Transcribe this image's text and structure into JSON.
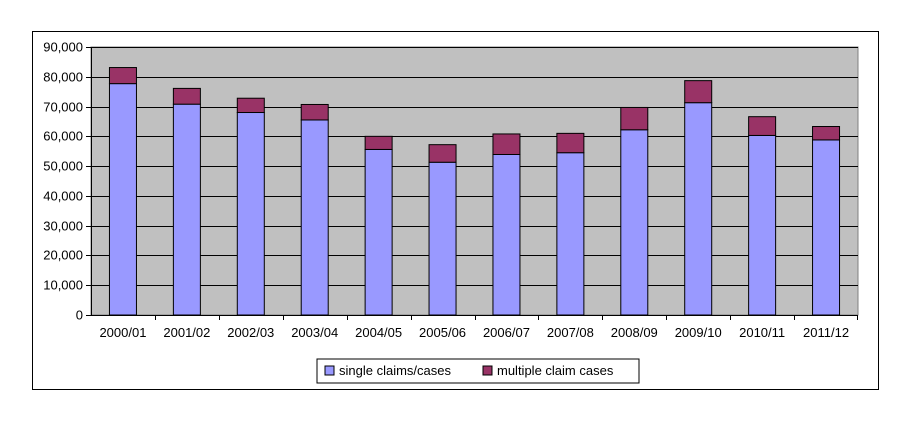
{
  "chart_data": {
    "type": "bar",
    "stacked": true,
    "categories": [
      "2000/01",
      "2001/02",
      "2002/03",
      "2003/04",
      "2004/05",
      "2005/06",
      "2006/07",
      "2007/08",
      "2008/09",
      "2009/10",
      "2010/11",
      "2011/12"
    ],
    "series": [
      {
        "name": "single claims/cases",
        "color": "#9999ff",
        "values": [
          77700,
          70800,
          68000,
          65500,
          55600,
          51300,
          53900,
          54500,
          62200,
          71300,
          60300,
          58800
        ]
      },
      {
        "name": "multiple claim cases",
        "color": "#993366",
        "values": [
          5400,
          5300,
          4800,
          5200,
          4400,
          5900,
          6900,
          6500,
          7500,
          7400,
          6300,
          4500
        ]
      }
    ],
    "ylim": [
      0,
      90000
    ],
    "y_ticks": [
      "0",
      "10,000",
      "20,000",
      "30,000",
      "40,000",
      "50,000",
      "60,000",
      "70,000",
      "80,000",
      "90,000"
    ],
    "grid": true,
    "plot_background": "#c0c0c0",
    "legend_position": "bottom"
  }
}
